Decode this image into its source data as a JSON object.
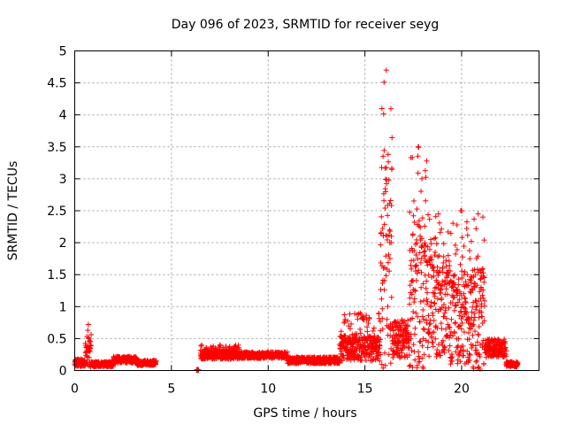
{
  "chart_data": {
    "type": "scatter",
    "title": "Day 096 of 2023, SRMTID for receiver seyg",
    "xlabel": "GPS time / hours",
    "ylabel": "SRMTID / TECUs",
    "xlim": [
      0,
      24
    ],
    "ylim": [
      0,
      5
    ],
    "xticks": [
      0,
      5,
      10,
      15,
      20
    ],
    "yticks": [
      0,
      0.5,
      1,
      1.5,
      2,
      2.5,
      3,
      3.5,
      4,
      4.5,
      5
    ],
    "xtick_labels": [
      "0",
      "5",
      "10",
      "15",
      "20"
    ],
    "ytick_labels": [
      "0",
      "0.5",
      "1",
      "1.5",
      "2",
      "2.5",
      "3",
      "3.5",
      "4",
      "4.5",
      "5"
    ],
    "grid": true,
    "marker": "+",
    "series": [
      {
        "name": "SRMTID",
        "color": "#ff0000",
        "segments": [
          {
            "x_range": [
              0.0,
              0.55
            ],
            "typical": 0.12,
            "spread": 0.06
          },
          {
            "x_range": [
              0.55,
              0.85
            ],
            "typical": 0.3,
            "spread": 0.25,
            "peak": 0.72
          },
          {
            "x_range": [
              0.85,
              2.0
            ],
            "typical": 0.1,
            "spread": 0.04
          },
          {
            "x_range": [
              2.0,
              3.2
            ],
            "typical": 0.17,
            "spread": 0.05
          },
          {
            "x_range": [
              3.2,
              4.2
            ],
            "typical": 0.12,
            "spread": 0.04
          },
          {
            "x_range": [
              6.3,
              6.4
            ],
            "typical": 0.0,
            "spread": 0.0
          },
          {
            "x_range": [
              6.5,
              8.5
            ],
            "typical": 0.25,
            "spread": 0.07,
            "peak": 0.4
          },
          {
            "x_range": [
              8.5,
              11.0
            ],
            "typical": 0.24,
            "spread": 0.05
          },
          {
            "x_range": [
              11.0,
              13.7
            ],
            "typical": 0.16,
            "spread": 0.05
          },
          {
            "x_range": [
              13.7,
              15.8
            ],
            "typical": 0.35,
            "spread": 0.2,
            "peak": 0.9
          },
          {
            "x_range": [
              15.8,
              16.4
            ],
            "typical": 1.6,
            "spread": 1.6,
            "peak": 4.7
          },
          {
            "x_range": [
              16.4,
              17.3
            ],
            "typical": 0.5,
            "spread": 0.3
          },
          {
            "x_range": [
              17.3,
              18.2
            ],
            "typical": 1.2,
            "spread": 1.2,
            "peak": 3.5
          },
          {
            "x_range": [
              18.2,
              19.4
            ],
            "typical": 1.0,
            "spread": 0.8,
            "peak": 2.45
          },
          {
            "x_range": [
              19.4,
              20.5
            ],
            "typical": 0.8,
            "spread": 0.7,
            "peak": 2.5
          },
          {
            "x_range": [
              20.5,
              21.2
            ],
            "typical": 0.8,
            "spread": 0.8,
            "peak": 2.45
          },
          {
            "x_range": [
              21.2,
              22.3
            ],
            "typical": 0.35,
            "spread": 0.15
          },
          {
            "x_range": [
              22.3,
              22.9
            ],
            "typical": 0.1,
            "spread": 0.04
          }
        ]
      }
    ]
  }
}
